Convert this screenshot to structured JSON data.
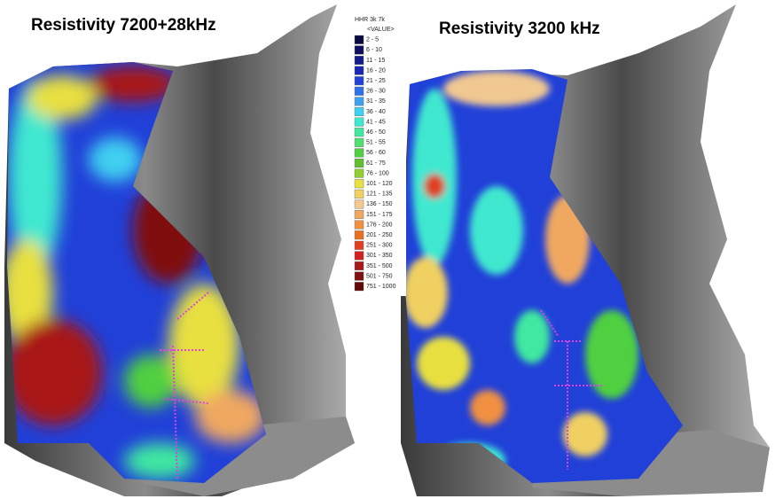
{
  "left_title": "Resistivity 7200+28kHz",
  "right_title": "Resistivity 3200 kHz",
  "legend": {
    "title": "HHR 3k 7k",
    "subtitle": "<VALUE>",
    "items": [
      {
        "label": "2 - 5",
        "color": "#0a0a3c"
      },
      {
        "label": "6 - 10",
        "color": "#101060"
      },
      {
        "label": "11 - 15",
        "color": "#121c8a"
      },
      {
        "label": "16 - 20",
        "color": "#1a28b4"
      },
      {
        "label": "21 - 25",
        "color": "#2040d8"
      },
      {
        "label": "26 - 30",
        "color": "#3070e8"
      },
      {
        "label": "31 - 35",
        "color": "#40a0f0"
      },
      {
        "label": "36 - 40",
        "color": "#40d0f0"
      },
      {
        "label": "41 - 45",
        "color": "#40e8d0"
      },
      {
        "label": "46 - 50",
        "color": "#40e8a0"
      },
      {
        "label": "51 - 55",
        "color": "#50e070"
      },
      {
        "label": "56 - 60",
        "color": "#50d040"
      },
      {
        "label": "61 - 75",
        "color": "#60c030"
      },
      {
        "label": "76 - 100",
        "color": "#90d030"
      },
      {
        "label": "101 - 120",
        "color": "#e8e040"
      },
      {
        "label": "121 - 135",
        "color": "#f0d060"
      },
      {
        "label": "136 - 150",
        "color": "#f0c890"
      },
      {
        "label": "151 - 175",
        "color": "#f0a860"
      },
      {
        "label": "176 - 200",
        "color": "#f09040"
      },
      {
        "label": "201 - 250",
        "color": "#e87020"
      },
      {
        "label": "251 - 300",
        "color": "#e04020"
      },
      {
        "label": "301 - 350",
        "color": "#d02020"
      },
      {
        "label": "351 - 500",
        "color": "#a81818"
      },
      {
        "label": "501 - 750",
        "color": "#801010"
      },
      {
        "label": "751 - 1000",
        "color": "#600808"
      }
    ]
  }
}
